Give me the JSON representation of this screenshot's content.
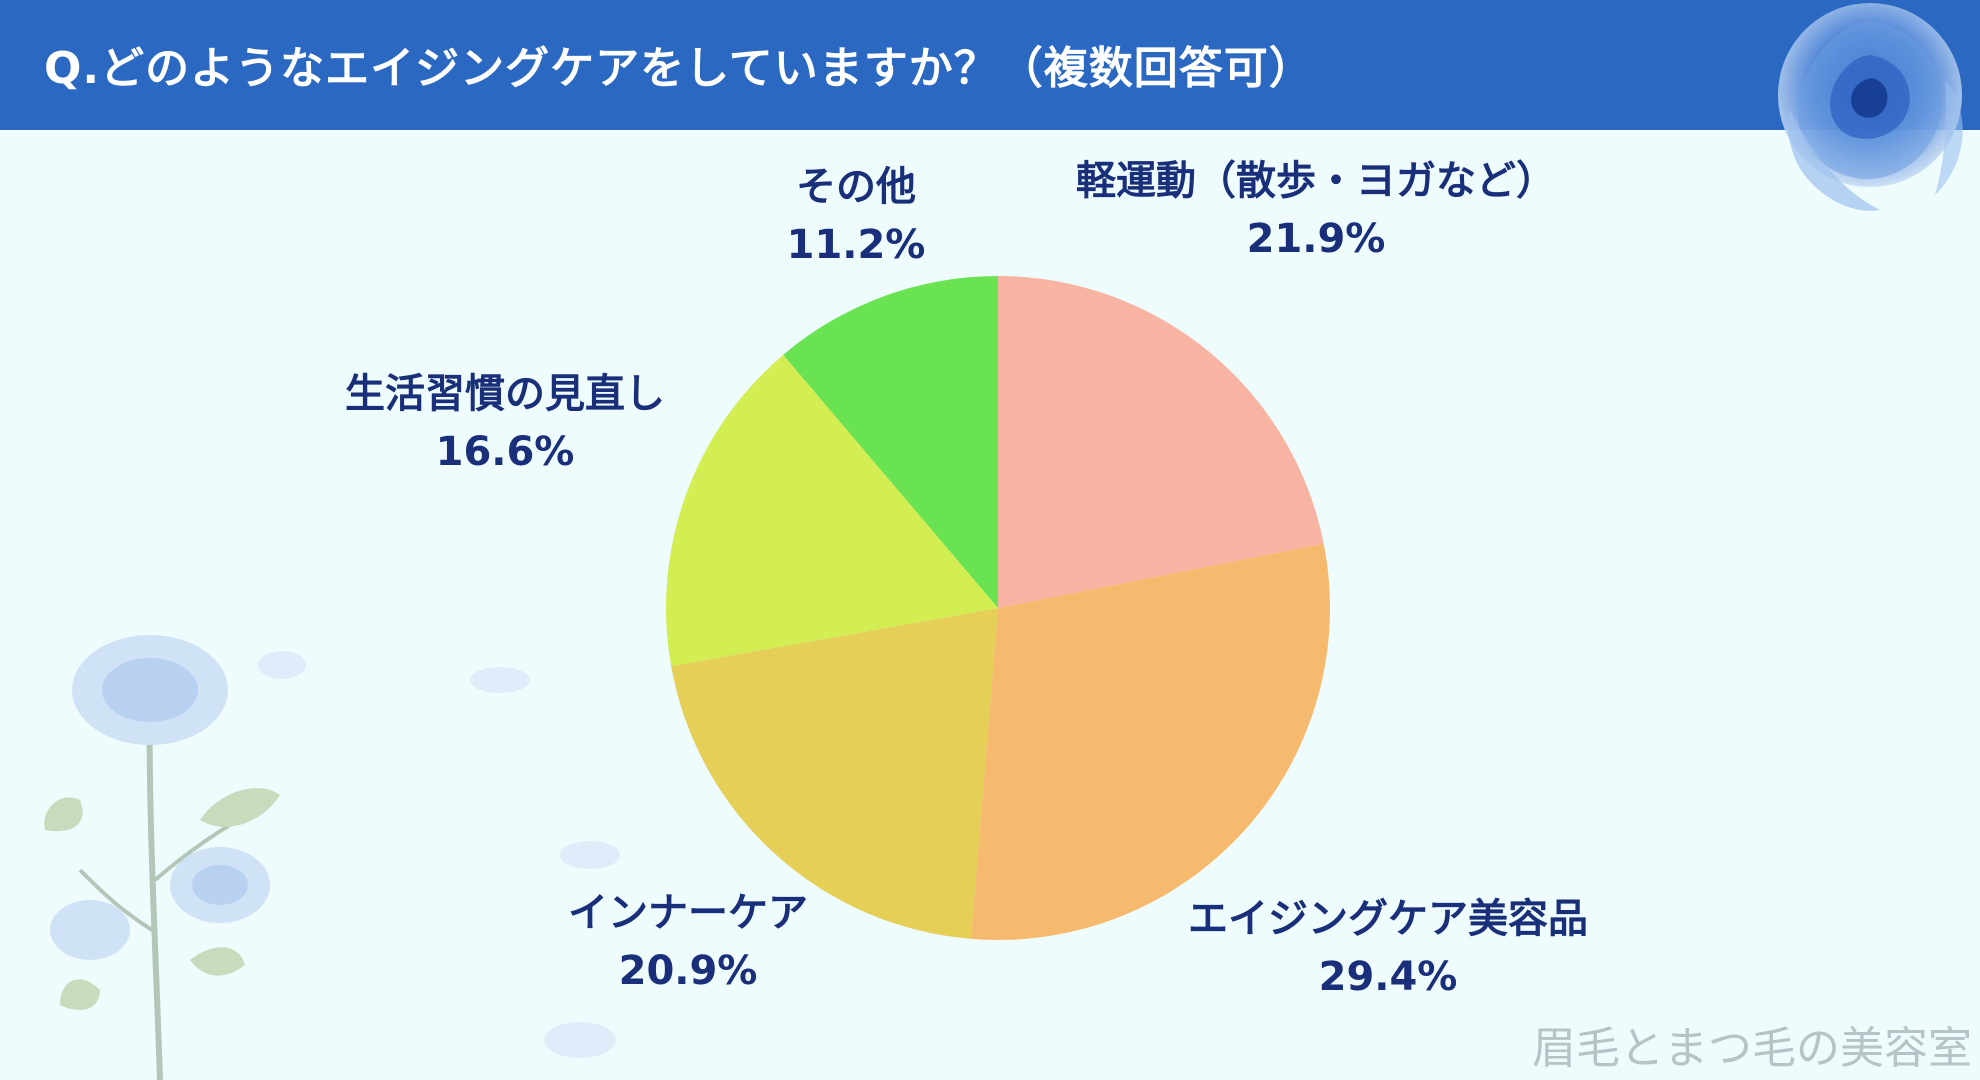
{
  "header": {
    "title": "Q.どのようなエイジングケアをしていますか？（複数回答可）",
    "bg_color": "#2a68c2"
  },
  "chart_data": {
    "type": "pie",
    "title": "Q.どのようなエイジングケアをしていますか？（複数回答可）",
    "start": "12 o'clock",
    "direction": "clockwise",
    "slices": [
      {
        "label": "軽運動（散歩・ヨガなど）",
        "value": 21.9,
        "value_label": "21.9%",
        "color": "#f8b4a2"
      },
      {
        "label": "エイジングケア美容品",
        "value": 29.4,
        "value_label": "29.4%",
        "color": "#f6ba6e"
      },
      {
        "label": "インナーケア",
        "value": 20.9,
        "value_label": "20.9%",
        "color": "#e6cf56"
      },
      {
        "label": "生活習慣の見直し",
        "value": 16.6,
        "value_label": "16.6%",
        "color": "#d3ee52"
      },
      {
        "label": "その他",
        "value": 11.2,
        "value_label": "11.2%",
        "color": "#6ae352"
      }
    ]
  },
  "watermark": "眉毛とまつ毛の美容室",
  "decorations": {
    "top_right": "blue-rose-icon",
    "bottom_left": "blue-rose-branch-icon"
  }
}
